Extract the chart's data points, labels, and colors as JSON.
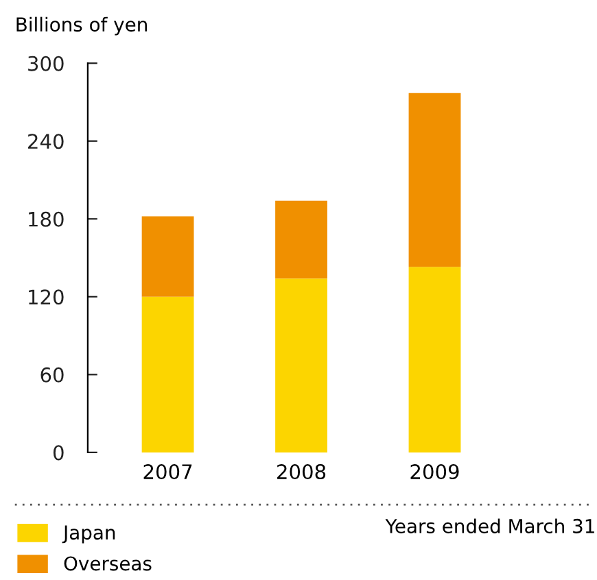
{
  "chart_data": {
    "type": "bar",
    "stacked": true,
    "ylabel": "Billions of yen",
    "xlabel": "Years ended March 31",
    "categories": [
      "2007",
      "2008",
      "2009"
    ],
    "series": [
      {
        "name": "Japan",
        "color": "#fcd500",
        "values": [
          120,
          134,
          143
        ]
      },
      {
        "name": "Overseas",
        "color": "#f09000",
        "values": [
          62,
          60,
          134
        ]
      }
    ],
    "ylim": [
      0,
      300
    ],
    "yticks": [
      0,
      60,
      120,
      180,
      240,
      300
    ],
    "grid": false,
    "legend": "bottom left"
  }
}
